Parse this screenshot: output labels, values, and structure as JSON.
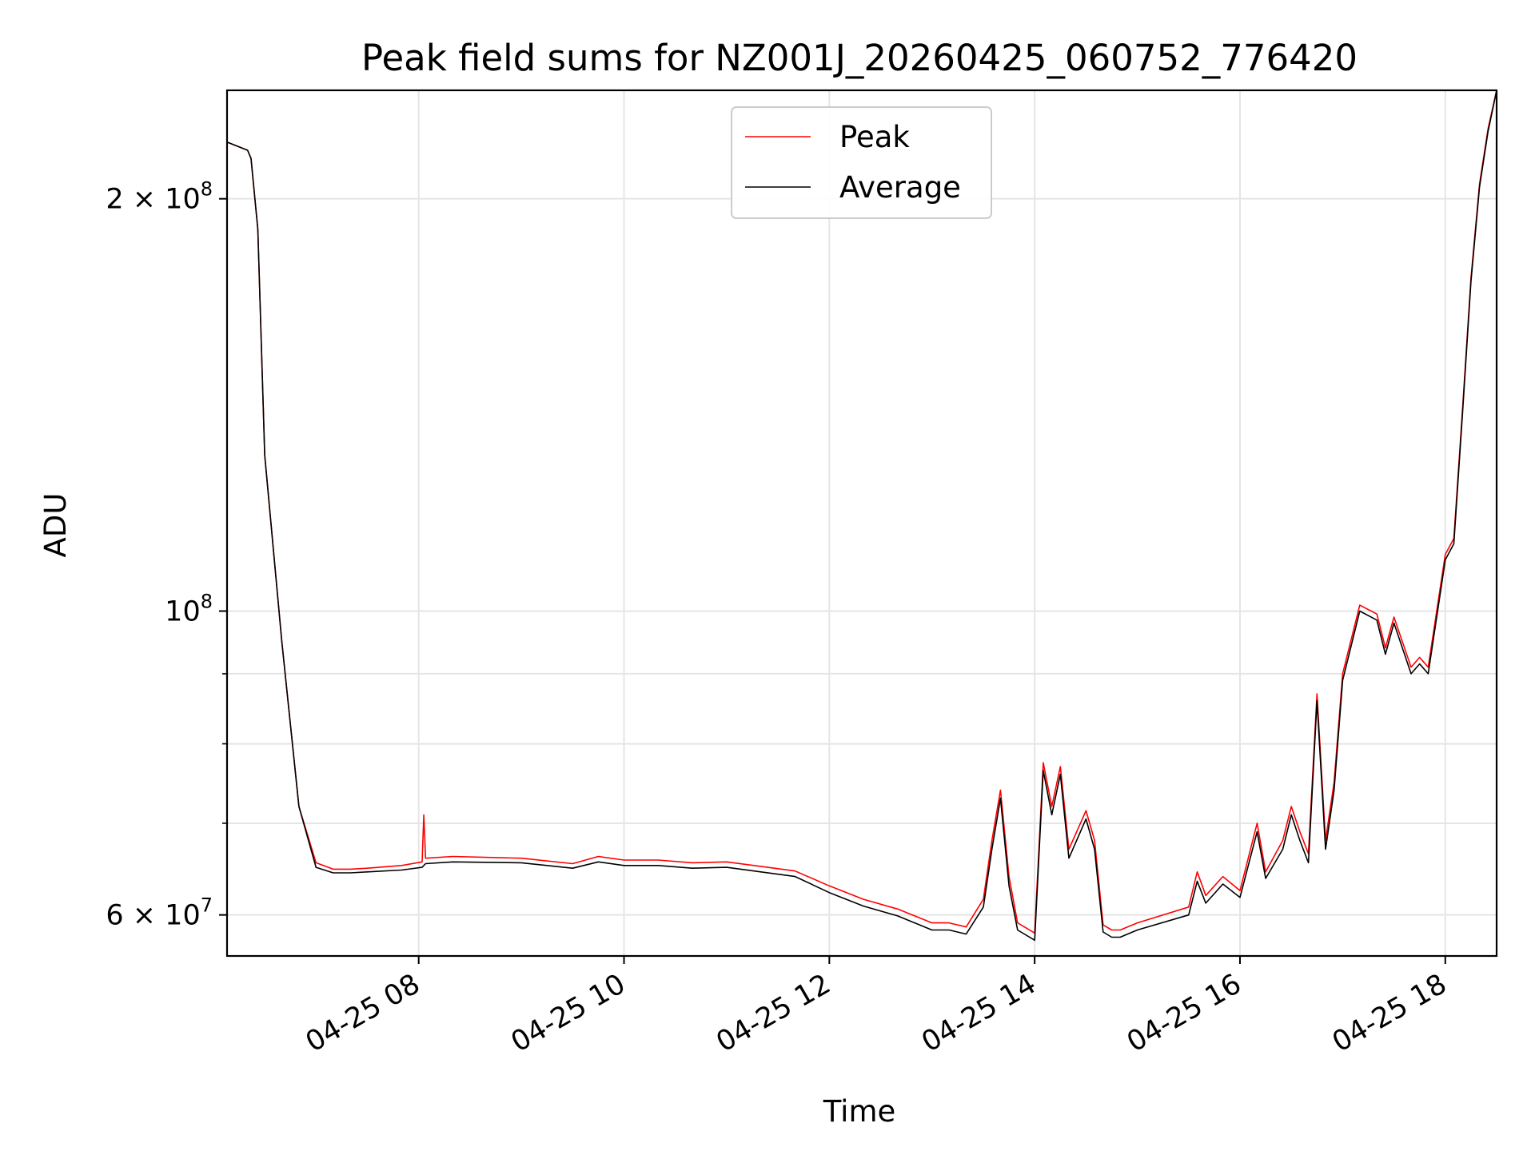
{
  "chart_data": {
    "type": "line",
    "title": "Peak field sums for NZ001J_20260425_060752_776420",
    "xlabel": "Time",
    "ylabel": "ADU",
    "yscale": "log",
    "grid": true,
    "legend_position": "top-center",
    "xlim": [
      "04-25 06:08",
      "04-25 18:30"
    ],
    "ylim": [
      56000000,
      240000000
    ],
    "x_ticks": [
      {
        "label": "04-25 08",
        "t": "04-25 08:00"
      },
      {
        "label": "04-25 10",
        "t": "04-25 10:00"
      },
      {
        "label": "04-25 12",
        "t": "04-25 12:00"
      },
      {
        "label": "04-25 14",
        "t": "04-25 14:00"
      },
      {
        "label": "04-25 16",
        "t": "04-25 16:00"
      },
      {
        "label": "04-25 18",
        "t": "04-25 18:00"
      }
    ],
    "y_ticks_major": [
      {
        "base": "2",
        "exp": "8",
        "value": 200000000
      },
      {
        "base": "",
        "exp": "8",
        "value": 100000000
      },
      {
        "base": "6",
        "exp": "7",
        "value": 60000000
      }
    ],
    "y_ticks_minor": [
      70000000,
      80000000,
      90000000
    ],
    "x_format": "MM-DD HH:mm",
    "series": [
      {
        "name": "Peak",
        "color": "#ff0000",
        "x": [
          "04-25 06:08",
          "04-25 06:20",
          "04-25 06:22",
          "04-25 06:26",
          "04-25 06:30",
          "04-25 06:40",
          "04-25 06:50",
          "04-25 07:00",
          "04-25 07:10",
          "04-25 07:20",
          "04-25 07:30",
          "04-25 07:50",
          "04-25 08:02",
          "04-25 08:03",
          "04-25 08:04",
          "04-25 08:20",
          "04-25 09:00",
          "04-25 09:30",
          "04-25 09:45",
          "04-25 10:00",
          "04-25 10:20",
          "04-25 10:40",
          "04-25 11:00",
          "04-25 11:20",
          "04-25 11:40",
          "04-25 12:00",
          "04-25 12:20",
          "04-25 12:40",
          "04-25 13:00",
          "04-25 13:10",
          "04-25 13:20",
          "04-25 13:30",
          "04-25 13:35",
          "04-25 13:40",
          "04-25 13:45",
          "04-25 13:50",
          "04-25 14:00",
          "04-25 14:05",
          "04-25 14:10",
          "04-25 14:15",
          "04-25 14:20",
          "04-25 14:30",
          "04-25 14:35",
          "04-25 14:40",
          "04-25 14:45",
          "04-25 14:50",
          "04-25 15:00",
          "04-25 15:30",
          "04-25 15:35",
          "04-25 15:40",
          "04-25 15:50",
          "04-25 16:00",
          "04-25 16:10",
          "04-25 16:15",
          "04-25 16:25",
          "04-25 16:30",
          "04-25 16:35",
          "04-25 16:40",
          "04-25 16:45",
          "04-25 16:50",
          "04-25 16:55",
          "04-25 17:00",
          "04-25 17:10",
          "04-25 17:20",
          "04-25 17:25",
          "04-25 17:30",
          "04-25 17:40",
          "04-25 17:45",
          "04-25 17:50",
          "04-25 18:00",
          "04-25 18:05",
          "04-25 18:10",
          "04-25 18:15",
          "04-25 18:20",
          "04-25 18:25",
          "04-25 18:30"
        ],
        "values": [
          220000000,
          217000000,
          214000000,
          190000000,
          130000000,
          95000000,
          72000000,
          65500000,
          64800000,
          64800000,
          64900000,
          65200000,
          65600000,
          71000000,
          66000000,
          66200000,
          66000000,
          65400000,
          66200000,
          65800000,
          65800000,
          65500000,
          65600000,
          65100000,
          64600000,
          63000000,
          61600000,
          60600000,
          59200000,
          59200000,
          58800000,
          61600000,
          68000000,
          74000000,
          64000000,
          59200000,
          58200000,
          77500000,
          72000000,
          77000000,
          67000000,
          71500000,
          68000000,
          59000000,
          58500000,
          58500000,
          59200000,
          60800000,
          64500000,
          62000000,
          64000000,
          62500000,
          70000000,
          64500000,
          68000000,
          72000000,
          69000000,
          66500000,
          87000000,
          68000000,
          75000000,
          90000000,
          101000000,
          99500000,
          94000000,
          99000000,
          91000000,
          92500000,
          91000000,
          110000000,
          113000000,
          140000000,
          175000000,
          205000000,
          225000000,
          240000000
        ]
      },
      {
        "name": "Average",
        "color": "#000000",
        "x": [
          "04-25 06:08",
          "04-25 06:20",
          "04-25 06:22",
          "04-25 06:26",
          "04-25 06:30",
          "04-25 06:40",
          "04-25 06:50",
          "04-25 07:00",
          "04-25 07:10",
          "04-25 07:20",
          "04-25 07:30",
          "04-25 07:50",
          "04-25 08:02",
          "04-25 08:04",
          "04-25 08:20",
          "04-25 09:00",
          "04-25 09:30",
          "04-25 09:45",
          "04-25 10:00",
          "04-25 10:20",
          "04-25 10:40",
          "04-25 11:00",
          "04-25 11:20",
          "04-25 11:40",
          "04-25 12:00",
          "04-25 12:20",
          "04-25 12:40",
          "04-25 13:00",
          "04-25 13:10",
          "04-25 13:20",
          "04-25 13:30",
          "04-25 13:35",
          "04-25 13:40",
          "04-25 13:45",
          "04-25 13:50",
          "04-25 14:00",
          "04-25 14:05",
          "04-25 14:10",
          "04-25 14:15",
          "04-25 14:20",
          "04-25 14:30",
          "04-25 14:35",
          "04-25 14:40",
          "04-25 14:45",
          "04-25 14:50",
          "04-25 15:00",
          "04-25 15:30",
          "04-25 15:35",
          "04-25 15:40",
          "04-25 15:50",
          "04-25 16:00",
          "04-25 16:10",
          "04-25 16:15",
          "04-25 16:25",
          "04-25 16:30",
          "04-25 16:35",
          "04-25 16:40",
          "04-25 16:45",
          "04-25 16:50",
          "04-25 16:55",
          "04-25 17:00",
          "04-25 17:10",
          "04-25 17:20",
          "04-25 17:25",
          "04-25 17:30",
          "04-25 17:40",
          "04-25 17:45",
          "04-25 17:50",
          "04-25 18:00",
          "04-25 18:05",
          "04-25 18:10",
          "04-25 18:15",
          "04-25 18:20",
          "04-25 18:25",
          "04-25 18:30"
        ],
        "values": [
          220000000,
          217000000,
          214000000,
          190000000,
          130000000,
          95000000,
          72000000,
          65000000,
          64400000,
          64400000,
          64500000,
          64700000,
          65000000,
          65400000,
          65600000,
          65500000,
          64900000,
          65600000,
          65200000,
          65200000,
          64900000,
          65000000,
          64500000,
          64000000,
          62300000,
          60900000,
          59900000,
          58500000,
          58500000,
          58100000,
          60800000,
          67000000,
          73000000,
          63000000,
          58500000,
          57500000,
          76500000,
          71000000,
          76000000,
          66000000,
          70500000,
          67000000,
          58300000,
          57800000,
          57800000,
          58500000,
          60000000,
          63500000,
          61200000,
          63200000,
          61800000,
          69000000,
          63800000,
          67000000,
          71000000,
          68000000,
          65500000,
          86000000,
          67000000,
          74000000,
          89000000,
          100000000,
          98500000,
          93000000,
          98000000,
          90000000,
          91500000,
          90000000,
          109000000,
          112000000,
          139000000,
          174000000,
          204000000,
          224000000,
          240000000
        ]
      }
    ]
  }
}
